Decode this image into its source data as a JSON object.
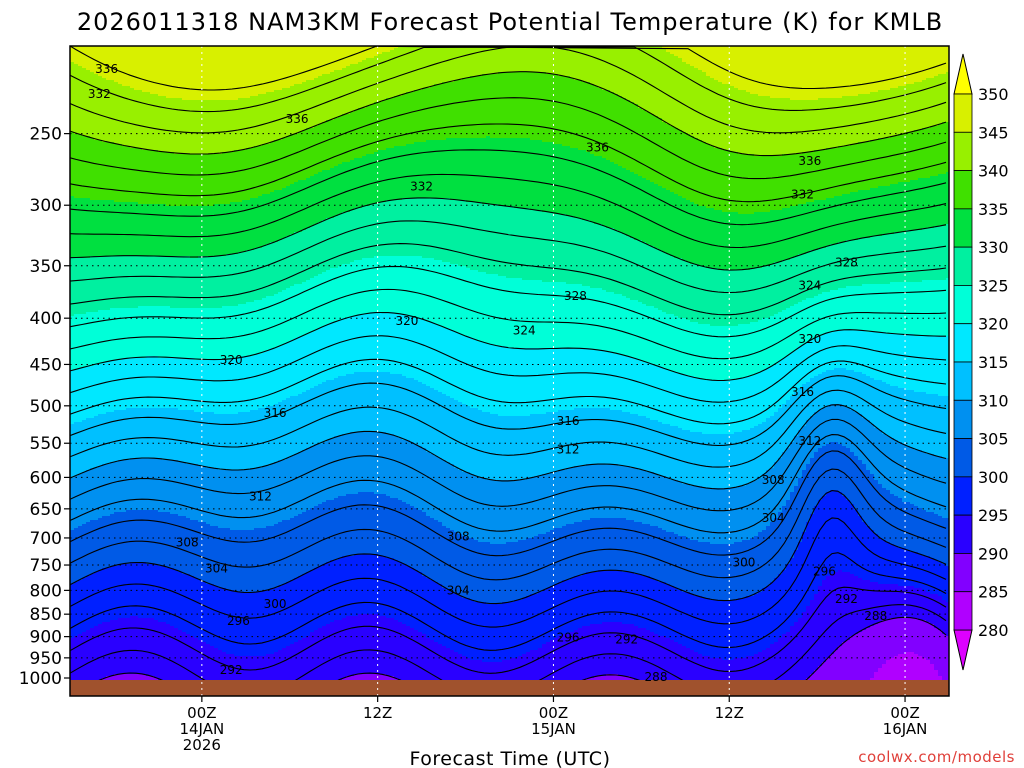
{
  "chart_data": {
    "type": "heatmap",
    "title": "2026011318 NAM3KM Forecast Potential Temperature (K) for KMLB",
    "xlabel": "Forecast Time (UTC)",
    "ylabel": "",
    "credit": "coolwx.com/models",
    "x_range_hours": [
      -3,
      57
    ],
    "x_ticks": [
      {
        "hour": 6,
        "line1": "00Z",
        "line2": "14JAN",
        "line3": "2026"
      },
      {
        "hour": 18,
        "line1": "12Z",
        "line2": "",
        "line3": ""
      },
      {
        "hour": 30,
        "line1": "00Z",
        "line2": "15JAN",
        "line3": ""
      },
      {
        "hour": 42,
        "line1": "12Z",
        "line2": "",
        "line3": ""
      },
      {
        "hour": 54,
        "line1": "00Z",
        "line2": "16JAN",
        "line3": ""
      }
    ],
    "y_axis": "pressure (hPa), log scale, inverted",
    "y_range": [
      1000,
      200
    ],
    "y_ticks": [
      250,
      300,
      350,
      400,
      450,
      500,
      550,
      600,
      650,
      700,
      750,
      800,
      850,
      900,
      950,
      1000
    ],
    "y_tick_labels": [
      "250",
      "300",
      "350",
      "400",
      "450",
      "500",
      "550",
      "600",
      "650",
      "700",
      "750",
      "800",
      "850",
      "900",
      "950",
      "1000"
    ],
    "colorbar": {
      "levels": [
        280,
        285,
        290,
        295,
        300,
        305,
        310,
        315,
        320,
        325,
        330,
        335,
        340,
        345,
        350
      ],
      "labels": [
        "280",
        "285",
        "290",
        "295",
        "300",
        "305",
        "310",
        "315",
        "320",
        "325",
        "330",
        "335",
        "340",
        "345",
        "350"
      ],
      "colors": [
        "#dd00ff",
        "#b000ff",
        "#8200ff",
        "#2a00ff",
        "#0020ff",
        "#005ae6",
        "#0090f0",
        "#00c0ff",
        "#00e8ff",
        "#00ffd8",
        "#00f0a0",
        "#00e040",
        "#40e000",
        "#98f000",
        "#d8f000",
        "#ffff00"
      ]
    },
    "contour_interval_K": 2,
    "contour_labels_shown": [
      {
        "value": "336",
        "hour": -0.5,
        "p": 212
      },
      {
        "value": "332",
        "hour": -1.0,
        "p": 226
      },
      {
        "value": "336",
        "hour": 12.5,
        "p": 241
      },
      {
        "value": "336",
        "hour": 33.0,
        "p": 259
      },
      {
        "value": "336",
        "hour": 47.5,
        "p": 268
      },
      {
        "value": "332",
        "hour": 21.0,
        "p": 286
      },
      {
        "value": "332",
        "hour": 47.0,
        "p": 292
      },
      {
        "value": "328",
        "hour": 50.0,
        "p": 347
      },
      {
        "value": "324",
        "hour": 47.5,
        "p": 368
      },
      {
        "value": "328",
        "hour": 31.5,
        "p": 378
      },
      {
        "value": "320",
        "hour": 20.0,
        "p": 403
      },
      {
        "value": "324",
        "hour": 28.0,
        "p": 413
      },
      {
        "value": "320",
        "hour": 47.5,
        "p": 422
      },
      {
        "value": "320",
        "hour": 8.0,
        "p": 445
      },
      {
        "value": "316",
        "hour": 47.0,
        "p": 483
      },
      {
        "value": "316",
        "hour": 11.0,
        "p": 509
      },
      {
        "value": "316",
        "hour": 31.0,
        "p": 520
      },
      {
        "value": "312",
        "hour": 47.5,
        "p": 547
      },
      {
        "value": "312",
        "hour": 31.0,
        "p": 559
      },
      {
        "value": "308",
        "hour": 45.0,
        "p": 604
      },
      {
        "value": "312",
        "hour": 10.0,
        "p": 630
      },
      {
        "value": "304",
        "hour": 45.0,
        "p": 665
      },
      {
        "value": "308",
        "hour": 5.0,
        "p": 708
      },
      {
        "value": "308",
        "hour": 23.5,
        "p": 697
      },
      {
        "value": "304",
        "hour": 7.0,
        "p": 757
      },
      {
        "value": "300",
        "hour": 43.0,
        "p": 745
      },
      {
        "value": "296",
        "hour": 48.5,
        "p": 762
      },
      {
        "value": "304",
        "hour": 23.5,
        "p": 800
      },
      {
        "value": "292",
        "hour": 50.0,
        "p": 818
      },
      {
        "value": "300",
        "hour": 11.0,
        "p": 828
      },
      {
        "value": "288",
        "hour": 52.0,
        "p": 854
      },
      {
        "value": "296",
        "hour": 8.5,
        "p": 865
      },
      {
        "value": "296",
        "hour": 31.0,
        "p": 902
      },
      {
        "value": "292",
        "hour": 35.0,
        "p": 907
      },
      {
        "value": "292",
        "hour": 8.0,
        "p": 980
      },
      {
        "value": "288",
        "hour": 37.0,
        "p": 998
      }
    ],
    "note": "Potential temperature time-height cross section; theta increases with height, ~290 K near surface to ~345 K near 200 hPa. Cold pocket (<285 K) near surface after 16JAN 00Z."
  }
}
